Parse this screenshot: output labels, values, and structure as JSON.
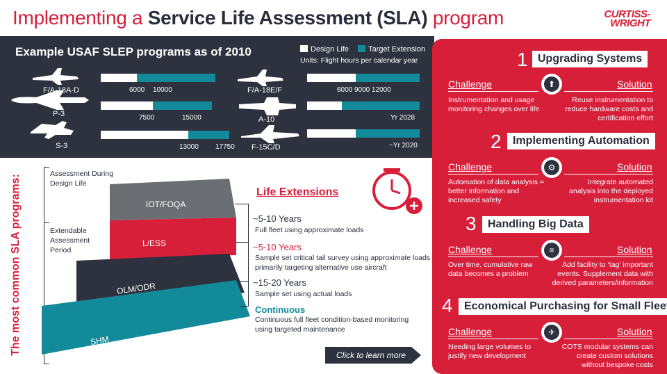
{
  "header": {
    "title_pre": "Implementing a ",
    "title_bold": "Service Life Assessment (SLA)",
    "title_post": " program",
    "logo_line1": "CURTISS-",
    "logo_line2": "WRIGHT"
  },
  "slep": {
    "title": "Example USAF SLEP programs as of 2010",
    "legend_design": "Design Life",
    "legend_target": "Target Extension",
    "units": "Units: Flight hours per calendar year",
    "colors": {
      "design": "#ffffff",
      "target": "#138a9a"
    },
    "programs": [
      {
        "name": "F/A-18A-D",
        "design": 6000,
        "target": 10000,
        "ticks": [
          "6000",
          "10000"
        ]
      },
      {
        "name": "P-3",
        "design": 7500,
        "target": 15000,
        "ticks": [
          "7500",
          "15000"
        ]
      },
      {
        "name": "S-3",
        "design": 13000,
        "target": 17750,
        "ticks": [
          "13000",
          "17750"
        ]
      },
      {
        "name": "F/A-18E/F",
        "design": 6000,
        "target": 12000,
        "ticks": [
          "6000",
          "9000",
          "12000"
        ]
      },
      {
        "name": "A-10",
        "ticks": [
          "Yr 2028"
        ]
      },
      {
        "name": "F-15C/D",
        "ticks": [
          "~Yr 2020"
        ]
      }
    ]
  },
  "sla": {
    "vertical_title": "The most common SLA programs:",
    "assessment": "Assessment During Design Life",
    "extendable": "Extendable Assessment Period",
    "blocks": [
      "IOT/FOQA",
      "L/ESS",
      "OLM/ODR",
      "SHM"
    ],
    "life_ext_title": "Life Extensions",
    "extensions": [
      {
        "years": "~5-10 Years",
        "desc": "Full fleet using approximate loads"
      },
      {
        "years": "~5-10 Years",
        "desc": "Sample set critical tail survey using approximate loads primarily targeting alternative use aircraft"
      },
      {
        "years": "~15-20 Years",
        "desc": "Sample set using actual loads"
      },
      {
        "years": "Continuous",
        "desc": "Continuous full fleet condition-based monitoring using targeted maintenance"
      }
    ],
    "cta": "Click to learn more"
  },
  "sections": [
    {
      "num": "1",
      "title": "Upgrading Systems",
      "challenge_label": "Challenge",
      "solution_label": "Solution",
      "challenge": "Instrumentation and usage monitoring changes over life",
      "solution": "Reuse instrumentation to reduce hardware costs and certification effort",
      "icon": "arrow-up-icon"
    },
    {
      "num": "2",
      "title": "Implementing Automation",
      "challenge_label": "Challenge",
      "solution_label": "Solution",
      "challenge": "Automation of data analysis = better information and increased safety",
      "solution": "Integrate automated analysis into the deployed instrumentation kit",
      "icon": "gears-icon"
    },
    {
      "num": "3",
      "title": "Handling Big Data",
      "challenge_label": "Challenge",
      "solution_label": "Solution",
      "challenge": "Over time, cumulative raw data becomes a problem",
      "solution": "Add facility to ‘tag’ important events. Supplement data with derived parameters/information",
      "icon": "database-icon"
    },
    {
      "num": "4",
      "title": "Economical Purchasing for Small Fleets",
      "challenge_label": "Challenge",
      "solution_label": "Solution",
      "challenge": "Needing large volumes to justify new development",
      "solution": "COTS modular systems can create custom solutions without bespoke costs",
      "icon": "airplane-icon"
    }
  ]
}
